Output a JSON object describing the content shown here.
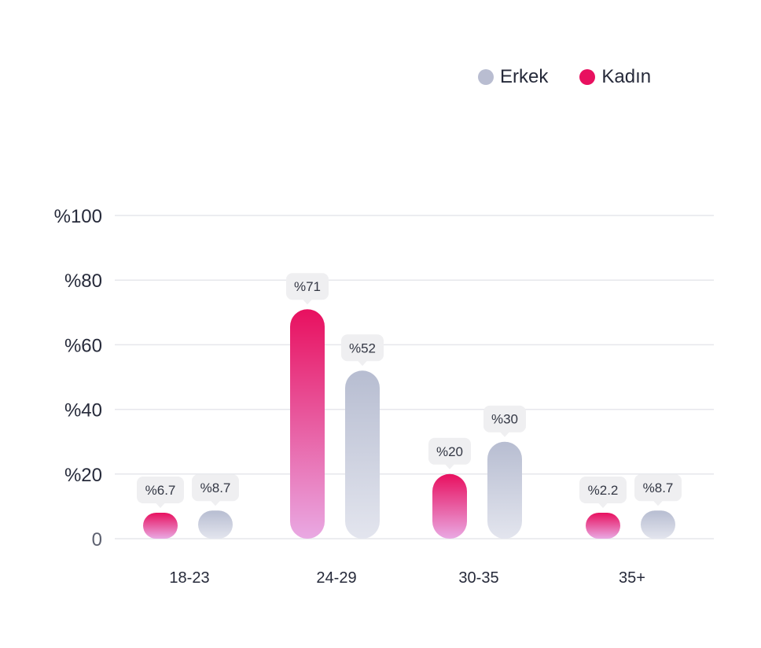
{
  "legend": {
    "erkek_label": "Erkek",
    "kadin_label": "Kadın",
    "erkek_color": "#b9bdd1",
    "kadin_color": "#e8105f"
  },
  "chart_data": {
    "type": "bar",
    "title": "",
    "xlabel": "",
    "ylabel": "",
    "categories": [
      "18-23",
      "24-29",
      "30-35",
      "35+"
    ],
    "series": [
      {
        "name": "Kadın",
        "values": [
          6.7,
          71,
          20,
          2.2
        ],
        "labels": [
          "%6.7",
          "%71",
          "%20",
          "%2.2"
        ]
      },
      {
        "name": "Erkek",
        "values": [
          8.7,
          52,
          30,
          8.7
        ],
        "labels": [
          "%8.7",
          "%52",
          "%30",
          "%8.7"
        ]
      }
    ],
    "ylim": [
      0,
      100
    ],
    "yticks": [
      0,
      20,
      40,
      60,
      80,
      100
    ],
    "ytick_labels": [
      "0",
      "%20",
      "%40",
      "%60",
      "%80",
      "%100"
    ],
    "grid": true,
    "legend_position": "top-right"
  }
}
